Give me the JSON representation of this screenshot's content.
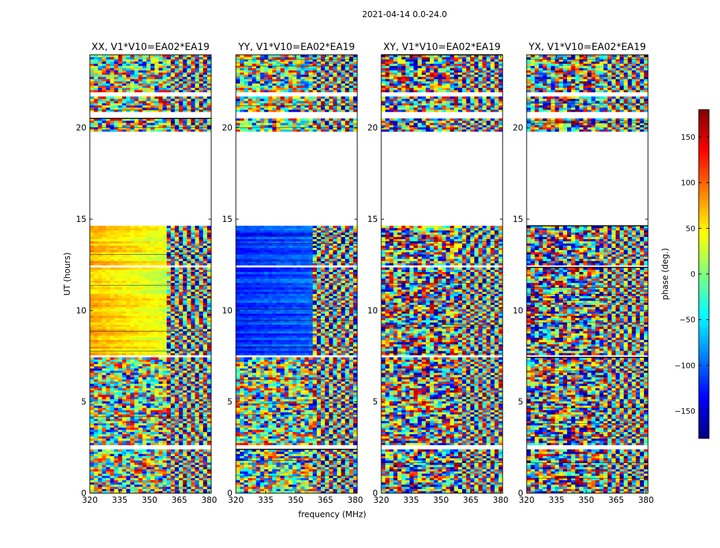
{
  "figure_title": "2021-04-14 0.0-24.0",
  "chart_data": [
    {
      "type": "heatmap",
      "title": "XX, V1*V10=EA02*EA19",
      "xlabel": "",
      "ylabel": "UT (hours)",
      "xlim": [
        320,
        381
      ],
      "ylim": [
        0,
        24
      ],
      "xticks": [
        320,
        335,
        350,
        365,
        380
      ],
      "yticks": [
        0,
        5,
        10,
        15,
        20
      ],
      "mode": "smooth-warm",
      "base_phase": 70,
      "smooth_hours": [
        [
          7.5,
          14.6
        ]
      ]
    },
    {
      "type": "heatmap",
      "title": "YY, V1*V10=EA02*EA19",
      "xlabel": "frequency (MHz)",
      "ylabel": "",
      "xlim": [
        320,
        381
      ],
      "ylim": [
        0,
        24
      ],
      "xticks": [
        320,
        335,
        350,
        365,
        380
      ],
      "yticks": [
        0,
        5,
        10,
        15,
        20
      ],
      "mode": "smooth-cool",
      "base_phase": -120,
      "smooth_hours": [
        [
          7.5,
          14.6
        ]
      ]
    },
    {
      "type": "heatmap",
      "title": "XY, V1*V10=EA02*EA19",
      "xlabel": "",
      "ylabel": "",
      "xlim": [
        320,
        381
      ],
      "ylim": [
        0,
        24
      ],
      "xticks": [
        320,
        335,
        350,
        365,
        380
      ],
      "yticks": [
        0,
        5,
        10,
        15,
        20
      ],
      "mode": "noise",
      "base_phase": 0,
      "smooth_hours": []
    },
    {
      "type": "heatmap",
      "title": "YX, V1*V10=EA02*EA19",
      "xlabel": "",
      "ylabel": "",
      "xlim": [
        320,
        381
      ],
      "ylim": [
        0,
        24
      ],
      "xticks": [
        320,
        335,
        350,
        365,
        380
      ],
      "yticks": [
        0,
        5,
        10,
        15,
        20
      ],
      "mode": "noise",
      "base_phase": 0,
      "smooth_hours": []
    }
  ],
  "colorbar": {
    "label": "phase (deg.)",
    "range": [
      -180,
      180
    ],
    "ticks": [
      150,
      100,
      50,
      0,
      -50,
      -100,
      -150
    ],
    "tick_labels": [
      "150",
      "100",
      "50",
      "0",
      "−50",
      "−100",
      "−150"
    ],
    "colormap": "jet"
  },
  "data_gaps_hours": [
    [
      2.4,
      2.6
    ],
    [
      14.6,
      19.8
    ],
    [
      20.5,
      20.9
    ],
    [
      21.7,
      22.0
    ],
    [
      12.4,
      12.5
    ],
    [
      7.5,
      7.6
    ],
    [
      3.2,
      3.3
    ]
  ]
}
